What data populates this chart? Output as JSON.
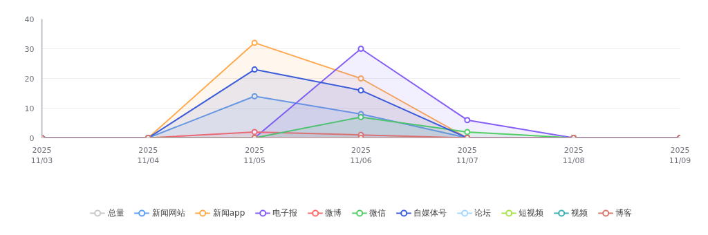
{
  "chart_data": {
    "type": "area",
    "x": [
      "2025-11-03",
      "2025-11-04",
      "2025-11-05",
      "2025-11-06",
      "2025-11-07",
      "2025-11-08",
      "2025-11-09"
    ],
    "xlim": [
      "2025-11-03",
      "2025-11-09"
    ],
    "xticks": [
      {
        "value": "2025-11-03",
        "label": "2025\n11/03"
      },
      {
        "value": "2025-11-04",
        "label": "2025\n11/04"
      },
      {
        "value": "2025-11-05",
        "label": "2025\n11/05"
      },
      {
        "value": "2025-11-06",
        "label": "2025\n11/06"
      },
      {
        "value": "2025-11-07",
        "label": "2025\n11/07"
      },
      {
        "value": "2025-11-08",
        "label": "2025\n11/08"
      },
      {
        "value": "2025-11-09",
        "label": "2025\n11/09"
      }
    ],
    "ylim": [
      0,
      40
    ],
    "yticks": [
      0,
      10,
      20,
      30,
      40
    ],
    "grid": "y",
    "legend": "bottom",
    "marker": "circle",
    "series": [
      {
        "name": "总量",
        "color": "#c8c8c8",
        "values": [
          null,
          null,
          null,
          null,
          null,
          null,
          null
        ]
      },
      {
        "name": "新闻网站",
        "color": "#5c9ff5",
        "values": [
          0,
          0,
          14,
          8,
          0,
          0,
          0
        ]
      },
      {
        "name": "新闻app",
        "color": "#ffa94d",
        "values": [
          0,
          0,
          32,
          20,
          0,
          0,
          0
        ]
      },
      {
        "name": "电子报",
        "color": "#845ef7",
        "values": [
          0,
          0,
          0,
          30,
          6,
          0,
          0
        ]
      },
      {
        "name": "微博",
        "color": "#ff6b6b",
        "values": [
          0,
          0,
          2,
          1,
          0,
          0,
          0
        ]
      },
      {
        "name": "微信",
        "color": "#51cf66",
        "values": [
          0,
          0,
          0,
          7,
          2,
          0,
          0
        ]
      },
      {
        "name": "自媒体号",
        "color": "#3b5bdb",
        "values": [
          0,
          0,
          23,
          16,
          0,
          0,
          0
        ]
      },
      {
        "name": "论坛",
        "color": "#a5d8ff",
        "type": "line",
        "values": [
          null,
          null,
          null,
          null,
          null,
          null,
          null
        ]
      },
      {
        "name": "短视频",
        "color": "#a9e34b",
        "type": "line",
        "values": [
          null,
          null,
          null,
          null,
          null,
          null,
          null
        ]
      },
      {
        "name": "视频",
        "color": "#3bb0b3",
        "type": "line",
        "values": [
          null,
          null,
          null,
          null,
          null,
          null,
          null
        ]
      },
      {
        "name": "博客",
        "color": "#d9776f",
        "type": "line",
        "values": [
          0,
          0,
          0,
          0,
          0,
          0,
          0
        ]
      }
    ]
  }
}
